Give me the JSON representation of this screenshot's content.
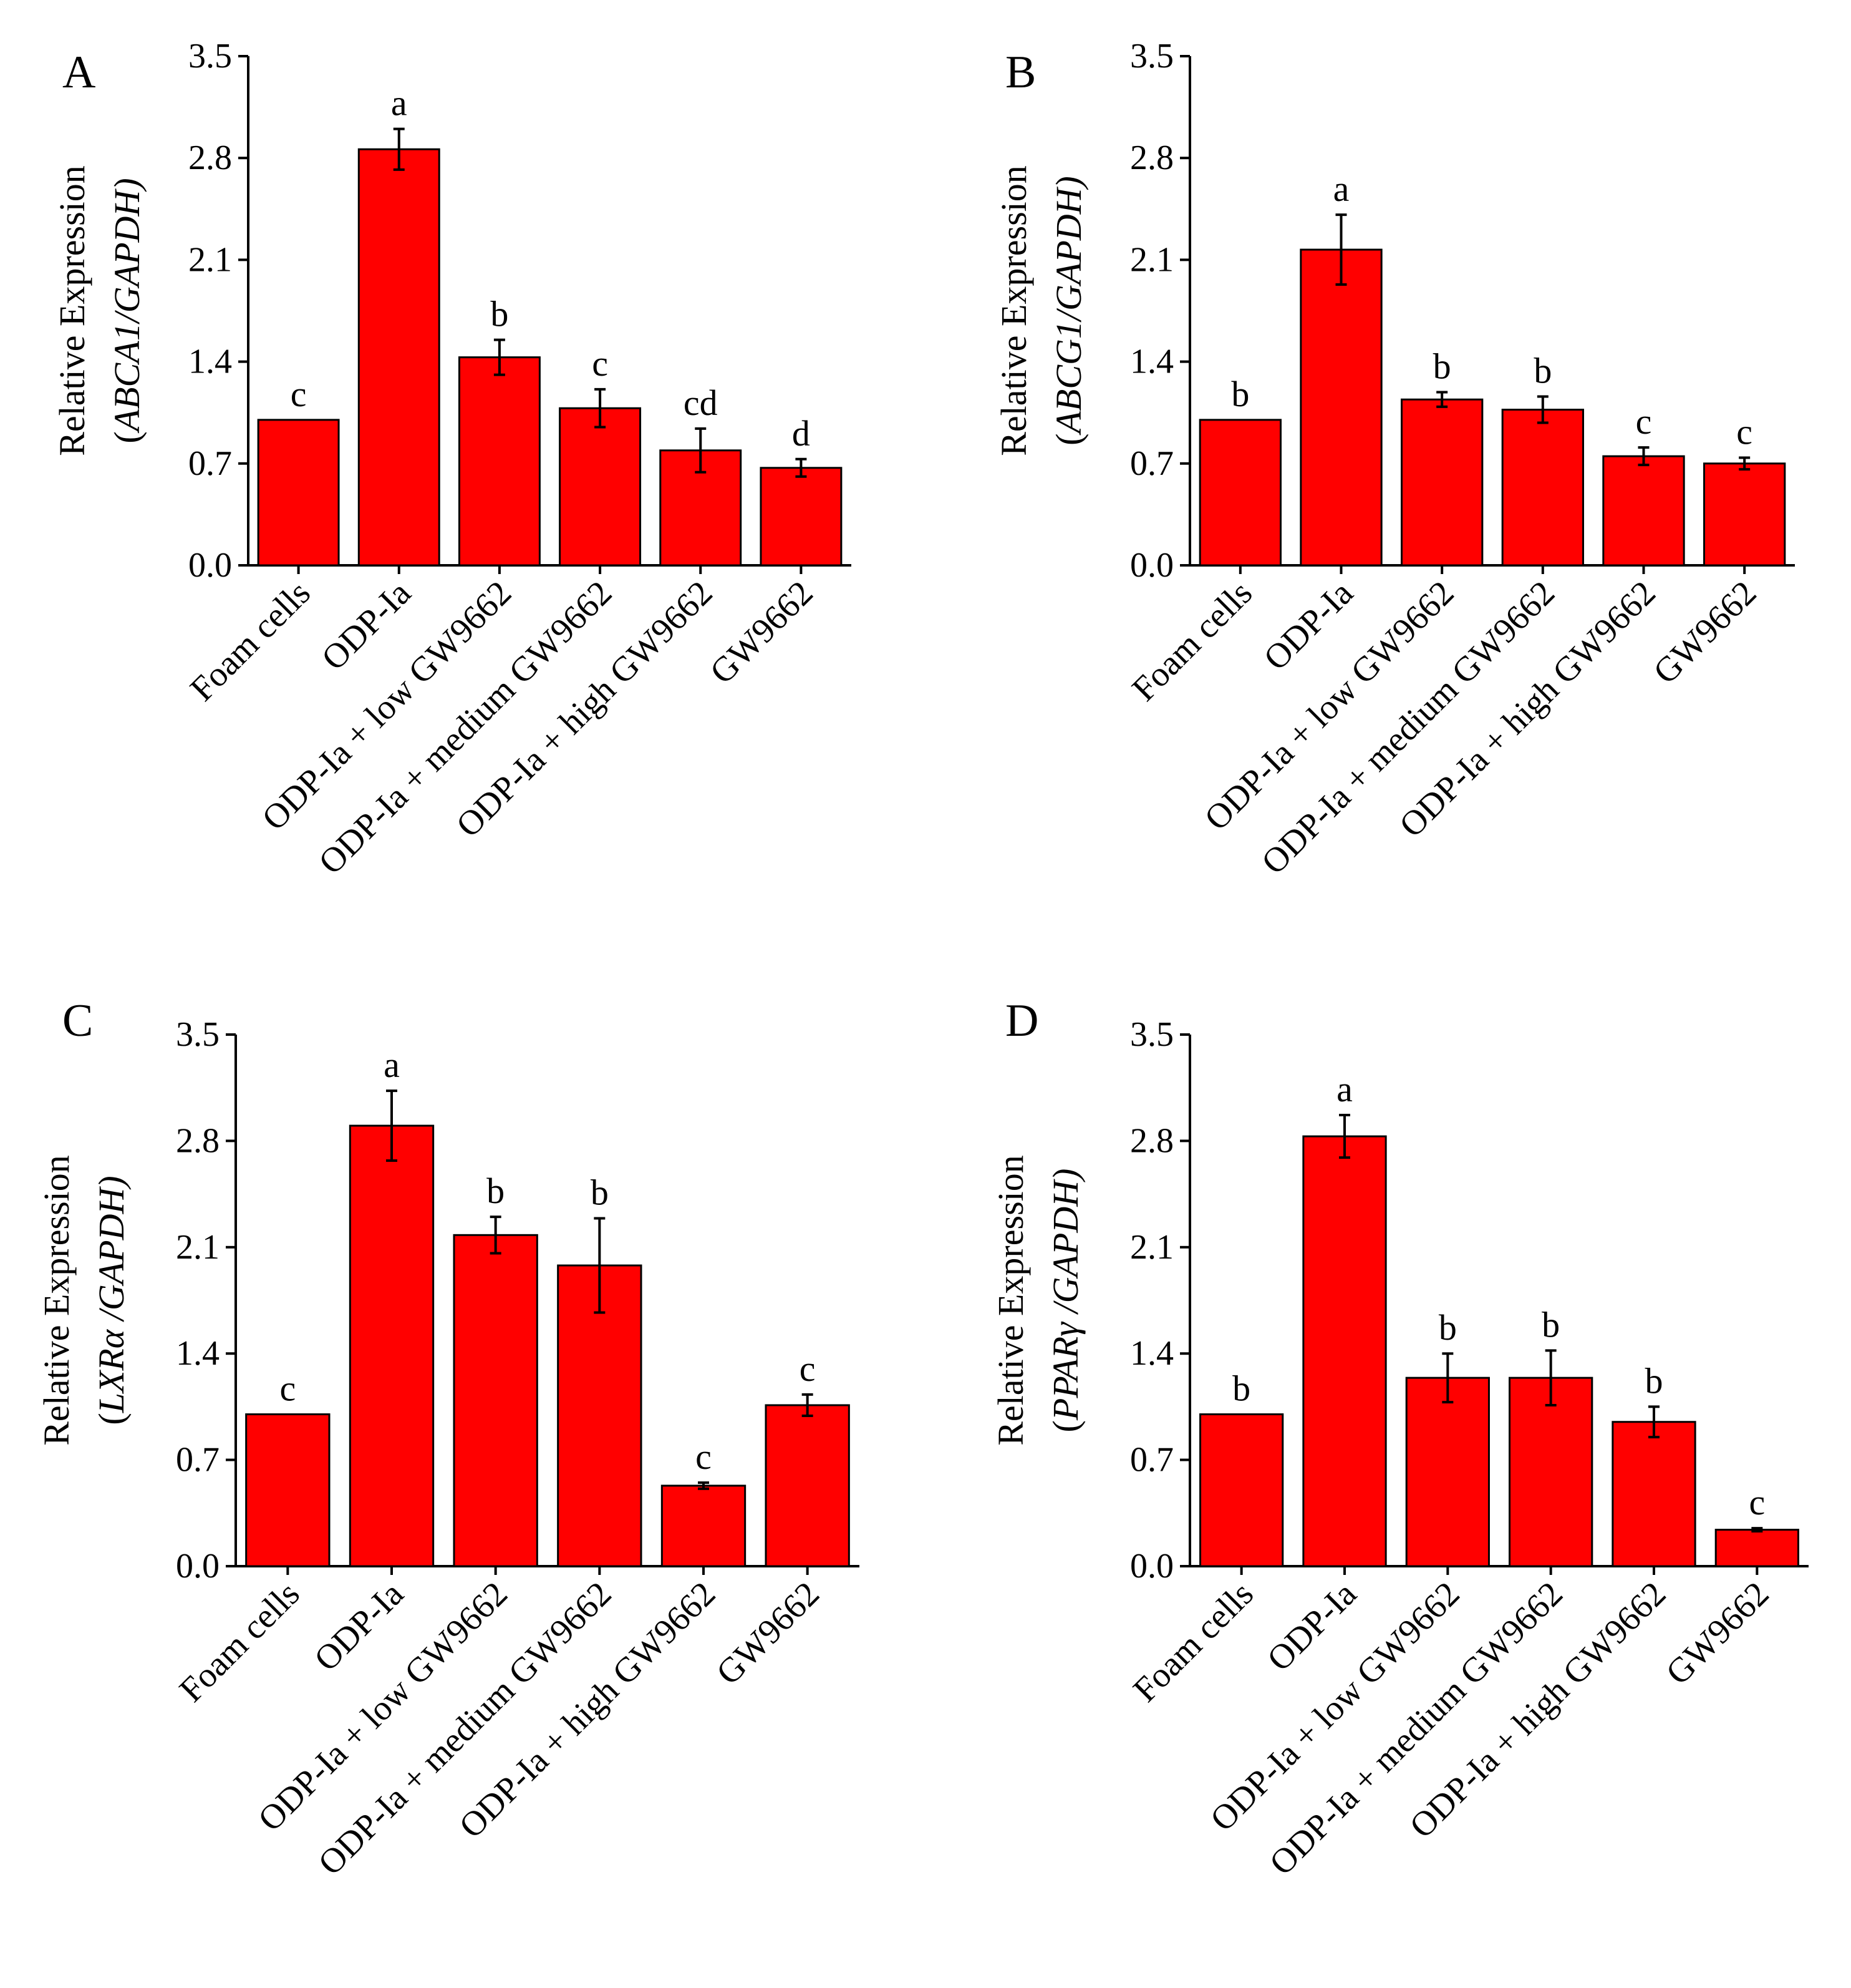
{
  "chart_data": [
    {
      "type": "bar",
      "panel_label": "A",
      "categories": [
        "Foam cells",
        "ODP-Ia",
        "ODP-Ia + low GW9662",
        "ODP-Ia + medium GW9662",
        "ODP-Ia + high GW9662",
        "GW9662"
      ],
      "values": [
        1.0,
        2.86,
        1.43,
        1.08,
        0.79,
        0.67
      ],
      "errors": [
        0.0,
        0.14,
        0.12,
        0.13,
        0.15,
        0.06
      ],
      "letters": [
        "c",
        "a",
        "b",
        "c",
        "cd",
        "d"
      ],
      "ylabel_line1": "Relative Expression",
      "ylabel_line2_open": "(",
      "ylabel_gene": "ABCA1",
      "ylabel_line2_rest": "/GAPDH)",
      "ylim": [
        0,
        3.5
      ],
      "yticks": [
        "0.0",
        "0.7",
        "1.4",
        "2.1",
        "2.8",
        "3.5"
      ],
      "bar_color": "#ff0000"
    },
    {
      "type": "bar",
      "panel_label": "B",
      "categories": [
        "Foam cells",
        "ODP-Ia",
        "ODP-Ia + low GW9662",
        "ODP-Ia + medium GW9662",
        "ODP-Ia + high GW9662",
        "GW9662"
      ],
      "values": [
        1.0,
        2.17,
        1.14,
        1.07,
        0.75,
        0.7
      ],
      "errors": [
        0.0,
        0.24,
        0.05,
        0.09,
        0.06,
        0.04
      ],
      "letters": [
        "b",
        "a",
        "b",
        "b",
        "c",
        "c"
      ],
      "ylabel_line1": "Relative Expression",
      "ylabel_line2_open": "(",
      "ylabel_gene": "ABCG1",
      "ylabel_line2_rest": "/GAPDH)",
      "ylim": [
        0,
        3.5
      ],
      "yticks": [
        "0.0",
        "0.7",
        "1.4",
        "2.1",
        "2.8",
        "3.5"
      ],
      "bar_color": "#ff0000"
    },
    {
      "type": "bar",
      "panel_label": "C",
      "categories": [
        "Foam cells",
        "ODP-Ia",
        "ODP-Ia + low GW9662",
        "ODP-Ia + medium GW9662",
        "ODP-Ia + high GW9662",
        "GW9662"
      ],
      "values": [
        1.0,
        2.9,
        2.18,
        1.98,
        0.53,
        1.06
      ],
      "errors": [
        0.0,
        0.23,
        0.12,
        0.31,
        0.02,
        0.07
      ],
      "letters": [
        "c",
        "a",
        "b",
        "b",
        "c",
        "c"
      ],
      "ylabel_line1": "Relative Expression",
      "ylabel_line2_open": "(",
      "ylabel_gene": "LXRα ",
      "ylabel_line2_rest": "/GAPDH)",
      "ylim": [
        0,
        3.5
      ],
      "yticks": [
        "0.0",
        "0.7",
        "1.4",
        "2.1",
        "2.8",
        "3.5"
      ],
      "bar_color": "#ff0000"
    },
    {
      "type": "bar",
      "panel_label": "D",
      "categories": [
        "Foam cells",
        "ODP-Ia",
        "ODP-Ia + low GW9662",
        "ODP-Ia + medium GW9662",
        "ODP-Ia + high GW9662",
        "GW9662"
      ],
      "values": [
        1.0,
        2.83,
        1.24,
        1.24,
        0.95,
        0.24
      ],
      "errors": [
        0.0,
        0.14,
        0.16,
        0.18,
        0.1,
        0.01
      ],
      "letters": [
        "b",
        "a",
        "b",
        "b",
        "b",
        "c"
      ],
      "ylabel_line1": "Relative Expression",
      "ylabel_line2_open": "(",
      "ylabel_gene": "PPARγ ",
      "ylabel_line2_rest": "/GAPDH)",
      "ylim": [
        0,
        3.5
      ],
      "yticks": [
        "0.0",
        "0.7",
        "1.4",
        "2.1",
        "2.8",
        "3.5"
      ],
      "bar_color": "#ff0000"
    }
  ]
}
